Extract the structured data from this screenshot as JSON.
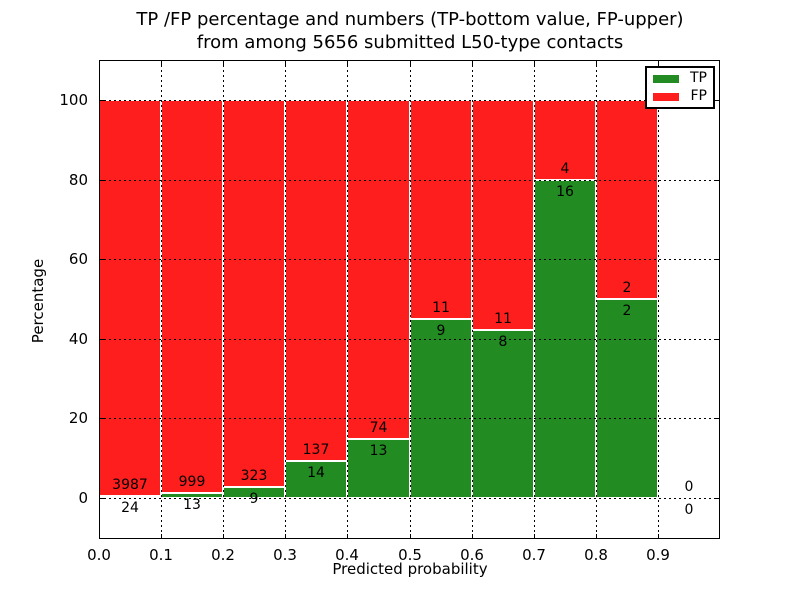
{
  "chart_data": {
    "type": "bar",
    "stacked": true,
    "normalized_to_percent": true,
    "title": "TP /FP percentage and numbers (TP-bottom value, FP-upper) from among 5656 submitted L50-type contacts",
    "title_line1": "TP /FP percentage and numbers (TP-bottom value, FP-upper)",
    "title_line2": "from among 5656 submitted L50-type contacts",
    "xlabel": "Predicted probability",
    "ylabel": "Percentage",
    "total_contacts": 5656,
    "xlim": [
      0.0,
      1.0
    ],
    "ylim": [
      -10.3,
      110.2
    ],
    "grid": true,
    "x_ticks": [
      0.0,
      0.1,
      0.2,
      0.3,
      0.4,
      0.5,
      0.6,
      0.7,
      0.8,
      0.9
    ],
    "x_tick_labels": [
      "0.0",
      "0.1",
      "0.2",
      "0.3",
      "0.4",
      "0.5",
      "0.6",
      "0.7",
      "0.8",
      "0.9"
    ],
    "y_ticks": [
      0,
      20,
      40,
      60,
      80,
      100
    ],
    "y_tick_labels": [
      "0",
      "20",
      "40",
      "60",
      "80",
      "100"
    ],
    "x_gridlines": [
      0.1,
      0.2,
      0.3,
      0.4,
      0.5,
      0.6,
      0.7,
      0.8,
      0.9
    ],
    "series": [
      {
        "name": "TP",
        "color": "#228b22",
        "values": [
          24,
          13,
          9,
          14,
          13,
          9,
          8,
          16,
          2,
          0
        ]
      },
      {
        "name": "FP",
        "color": "#ff1e1e",
        "values": [
          3987,
          999,
          323,
          137,
          74,
          11,
          11,
          4,
          2,
          0
        ]
      }
    ],
    "bins": [
      {
        "x0": 0.0,
        "x1": 0.1,
        "tp": 24,
        "fp": 3987
      },
      {
        "x0": 0.1,
        "x1": 0.2,
        "tp": 13,
        "fp": 999
      },
      {
        "x0": 0.2,
        "x1": 0.3,
        "tp": 9,
        "fp": 323
      },
      {
        "x0": 0.3,
        "x1": 0.4,
        "tp": 14,
        "fp": 137
      },
      {
        "x0": 0.4,
        "x1": 0.5,
        "tp": 13,
        "fp": 74
      },
      {
        "x0": 0.5,
        "x1": 0.6,
        "tp": 9,
        "fp": 11
      },
      {
        "x0": 0.6,
        "x1": 0.7,
        "tp": 8,
        "fp": 11
      },
      {
        "x0": 0.7,
        "x1": 0.8,
        "tp": 16,
        "fp": 4
      },
      {
        "x0": 0.8,
        "x1": 0.9,
        "tp": 2,
        "fp": 2
      },
      {
        "x0": 0.9,
        "x1": 1.0,
        "tp": 0,
        "fp": 0
      }
    ],
    "legend": {
      "position": "upper right",
      "items": [
        {
          "label": "TP",
          "color": "#228b22"
        },
        {
          "label": "FP",
          "color": "#ff1e1e"
        }
      ]
    },
    "colors": {
      "tp": "#228b22",
      "fp": "#ff1e1e",
      "grid": "#000000",
      "frame": "#000000",
      "background": "#ffffff"
    }
  }
}
